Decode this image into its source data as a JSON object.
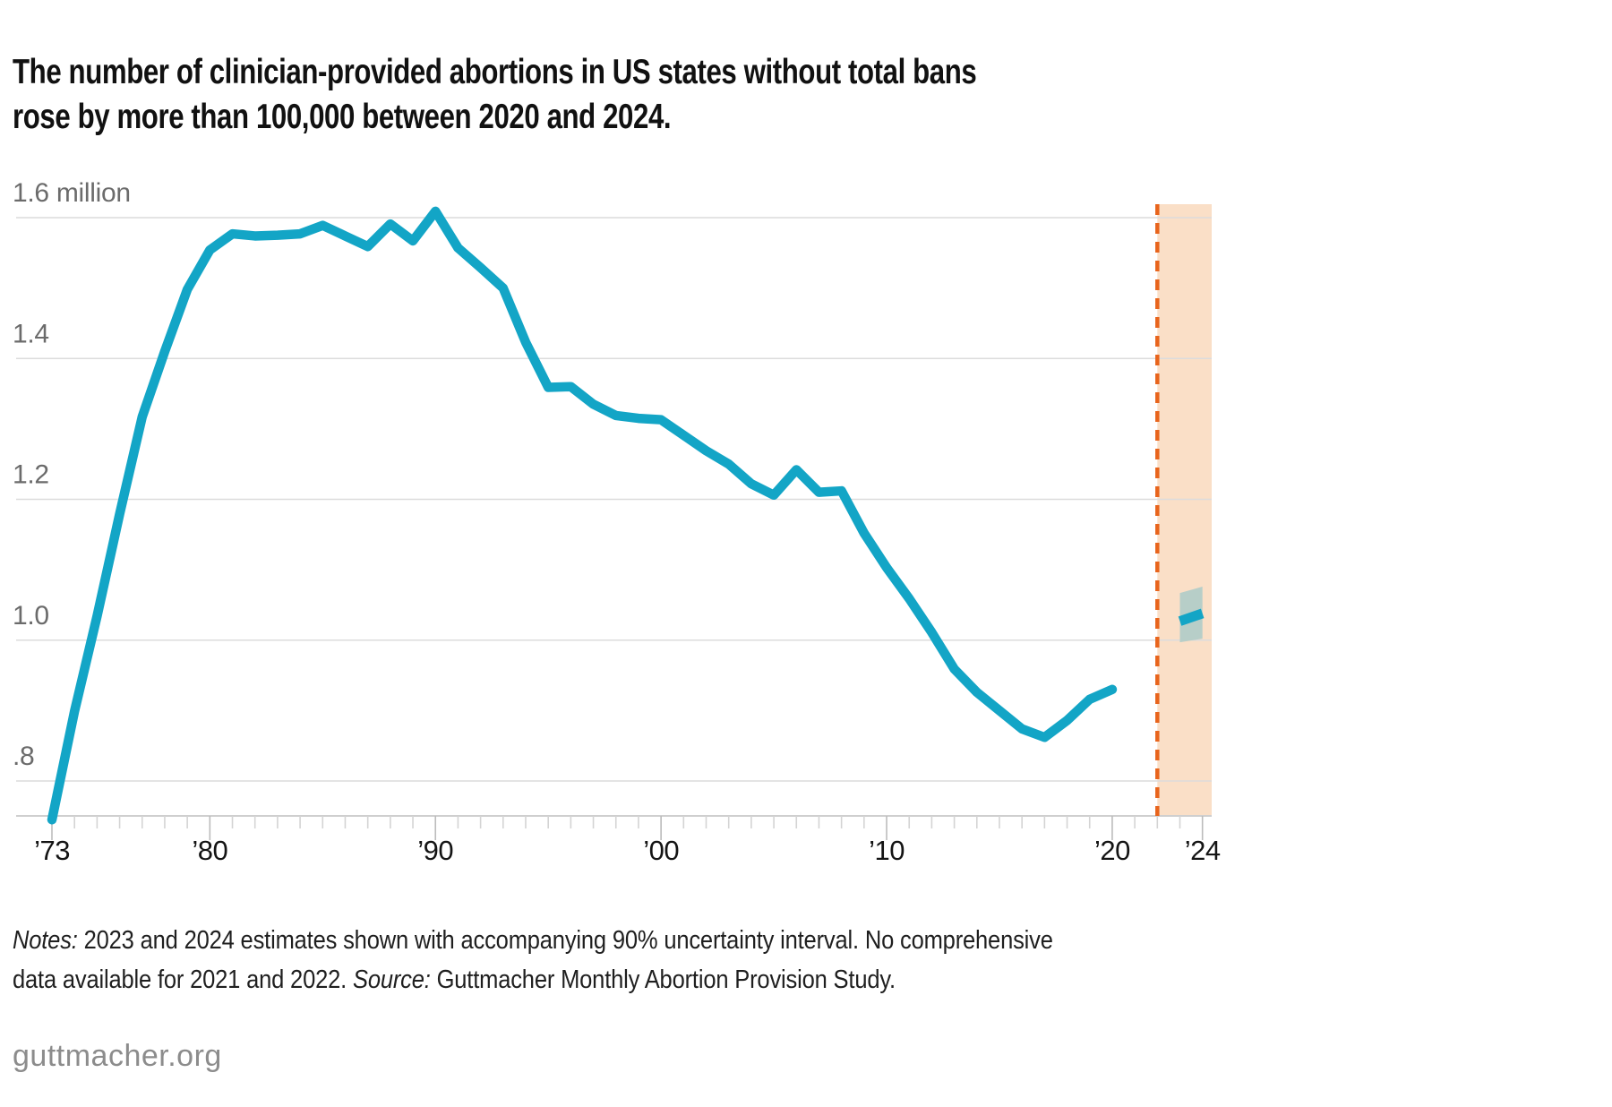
{
  "header": {
    "title_line1": "The number of clinician-provided abortions in US states without total bans",
    "title_line2": "rose by more than 100,000 between 2020 and 2024."
  },
  "notes": {
    "line1": [
      {
        "italic": true,
        "text": "Notes:"
      },
      {
        "italic": false,
        "text": " 2023 and 2024 estimates shown with accompanying 90% uncertainty interval. No comprehensive"
      }
    ],
    "line2": [
      {
        "italic": false,
        "text": "data available for 2021 and 2022. "
      },
      {
        "italic": true,
        "text": "Source:"
      },
      {
        "italic": false,
        "text": " Guttmacher Monthly Abortion Provision Study."
      }
    ]
  },
  "footer": {
    "site": "guttmacher.org"
  },
  "colors": {
    "teal_line": "#13a5c6",
    "orange_divider": "#e8641c",
    "projection_band": "#fadfc7",
    "uncertainty_band": "#b7cec8",
    "gridline": "#dcdcdc",
    "axis_line": "#cfcfcf",
    "tick_minor": "#d4d4d4",
    "tick_major": "#bcbcbc",
    "y_label": "#6b6b6b",
    "x_label": "#141414"
  },
  "chart_data": {
    "type": "line",
    "title": "The number of clinician-provided abortions in US states without total bans rose by more than 100,000 between 2020 and 2024.",
    "values_unit": "millions of abortions per year",
    "grid": true,
    "ylim": [
      0.75,
      1.6
    ],
    "xlim": [
      1973,
      2024.4
    ],
    "x": [
      1973,
      1974,
      1975,
      1976,
      1977,
      1978,
      1979,
      1980,
      1981,
      1982,
      1983,
      1984,
      1985,
      1986,
      1987,
      1988,
      1989,
      1990,
      1991,
      1992,
      1993,
      1994,
      1995,
      1996,
      1997,
      1998,
      1999,
      2000,
      2001,
      2002,
      2003,
      2004,
      2005,
      2006,
      2007,
      2008,
      2009,
      2010,
      2011,
      2012,
      2013,
      2014,
      2015,
      2016,
      2017,
      2018,
      2019,
      2020
    ],
    "values": [
      0.745,
      0.899,
      1.034,
      1.179,
      1.317,
      1.41,
      1.498,
      1.554,
      1.577,
      1.574,
      1.575,
      1.577,
      1.589,
      1.574,
      1.559,
      1.591,
      1.567,
      1.609,
      1.557,
      1.529,
      1.5,
      1.423,
      1.359,
      1.36,
      1.335,
      1.319,
      1.315,
      1.313,
      1.291,
      1.269,
      1.25,
      1.222,
      1.206,
      1.242,
      1.21,
      1.212,
      1.152,
      1.103,
      1.059,
      1.011,
      0.959,
      0.926,
      0.9,
      0.874,
      0.862,
      0.886,
      0.916,
      0.93
    ],
    "estimate": {
      "x": [
        2023,
        2024
      ],
      "values": [
        1.027,
        1.038
      ],
      "ci_upper": [
        1.067,
        1.076
      ],
      "ci_lower": [
        0.997,
        1.002
      ],
      "ci_level": "90%"
    },
    "projection_region": {
      "from": 2022,
      "to": 2024.4
    },
    "y_ticks": [
      {
        "label": "1.6 million",
        "value": 1.6
      },
      {
        "label": "1.4",
        "value": 1.4
      },
      {
        "label": "1.2",
        "value": 1.2
      },
      {
        "label": "1.0",
        "value": 1.0
      },
      {
        "label": ".8",
        "value": 0.8
      }
    ],
    "x_ticks_labeled": [
      {
        "label": "’73",
        "year": 1973
      },
      {
        "label": "’80",
        "year": 1980
      },
      {
        "label": "’90",
        "year": 1990
      },
      {
        "label": "’00",
        "year": 2000
      },
      {
        "label": "’10",
        "year": 2010
      },
      {
        "label": "’20",
        "year": 2020
      },
      {
        "label": "’24",
        "year": 2024
      }
    ],
    "x_minor_tick_every": 1
  }
}
